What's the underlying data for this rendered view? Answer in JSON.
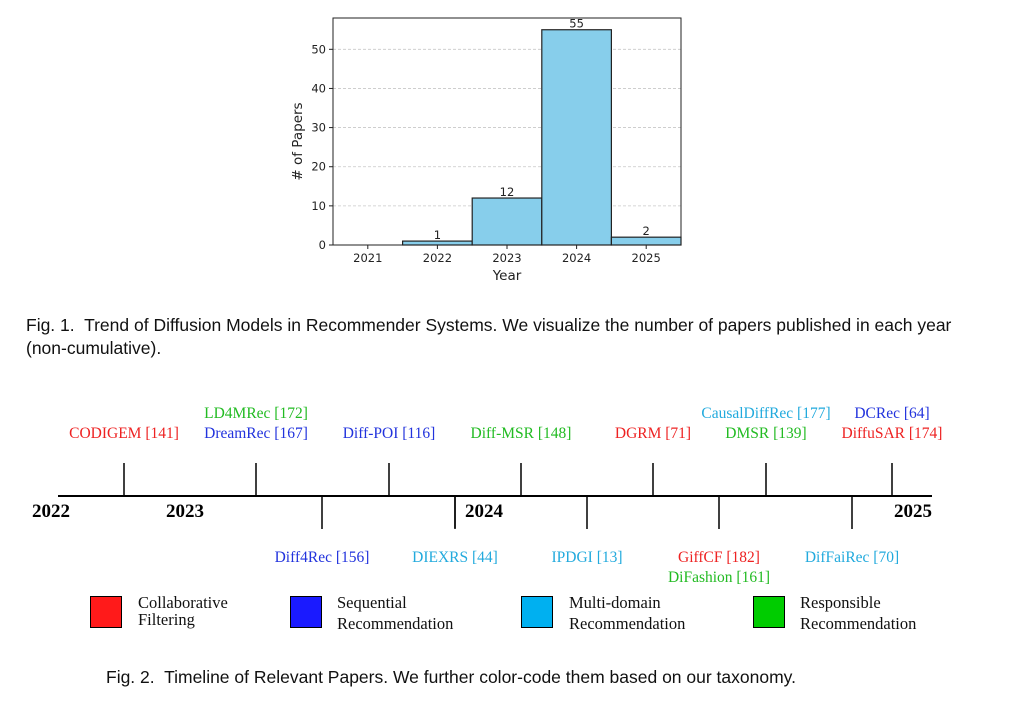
{
  "chart_data": {
    "type": "bar",
    "categories": [
      "2021",
      "2022",
      "2023",
      "2024",
      "2025"
    ],
    "values": [
      0,
      1,
      12,
      55,
      2
    ],
    "data_labels": [
      "",
      "1",
      "12",
      "55",
      "2"
    ],
    "xlabel": "Year",
    "ylabel": "# of Papers",
    "ylim": [
      0,
      58
    ],
    "yticks": [
      0,
      10,
      20,
      30,
      40,
      50
    ],
    "grid": true,
    "bar_color": "#87ceeb",
    "edge_color": "#222222"
  },
  "fig1_caption": {
    "label": "Fig. 1.",
    "text": "Trend of Diffusion Models in Recommender Systems. We visualize the number of papers published in each year (non-cumulative)."
  },
  "timeline": {
    "years": [
      "2022",
      "2023",
      "2024",
      "2025"
    ],
    "above": [
      {
        "lines": [
          {
            "text": "CODIGEM [141]",
            "color": "#ee2222"
          }
        ]
      },
      {
        "lines": [
          {
            "text": "LD4MRec [172]",
            "color": "#22bb22"
          },
          {
            "text": "DreamRec [167]",
            "color": "#2233dd"
          }
        ]
      },
      {
        "lines": [
          {
            "text": "Diff-POI [116]",
            "color": "#2233dd"
          }
        ]
      },
      {
        "lines": [
          {
            "text": "Diff-MSR [148]",
            "color": "#22bb22"
          }
        ]
      },
      {
        "lines": [
          {
            "text": "DGRM [71]",
            "color": "#ee2222"
          }
        ]
      },
      {
        "lines": [
          {
            "text": "CausalDiffRec [177]",
            "color": "#22aadd"
          },
          {
            "text": "DMSR [139]",
            "color": "#22bb22"
          }
        ]
      },
      {
        "lines": [
          {
            "text": "DCRec [64]",
            "color": "#2233dd"
          },
          {
            "text": "DiffuSAR [174]",
            "color": "#ee2222"
          }
        ]
      }
    ],
    "below": [
      {
        "lines": [
          {
            "text": "Diff4Rec [156]",
            "color": "#2233dd"
          }
        ]
      },
      {
        "lines": [
          {
            "text": "DIEXRS [44]",
            "color": "#22aadd"
          }
        ]
      },
      {
        "lines": [
          {
            "text": "IPDGI [13]",
            "color": "#22aadd"
          }
        ]
      },
      {
        "lines": [
          {
            "text": "GiffCF [182]",
            "color": "#ee2222"
          },
          {
            "text": "DiFashion [161]",
            "color": "#22bb22"
          }
        ]
      },
      {
        "lines": [
          {
            "text": "DifFaiRec [70]",
            "color": "#22aadd"
          }
        ]
      }
    ]
  },
  "legend": [
    {
      "label": "Collaborative\nFiltering",
      "color": "#ff1a1a"
    },
    {
      "label": "Sequential\nRecommendation",
      "color": "#1a1aff"
    },
    {
      "label": "Multi-domain\nRecommendation",
      "color": "#00b0f0"
    },
    {
      "label": "Responsible\nRecommendation",
      "color": "#00cc00"
    }
  ],
  "fig2_caption": {
    "label": "Fig. 2.",
    "text": "Timeline of Relevant Papers. We further color-code them based on our taxonomy."
  }
}
